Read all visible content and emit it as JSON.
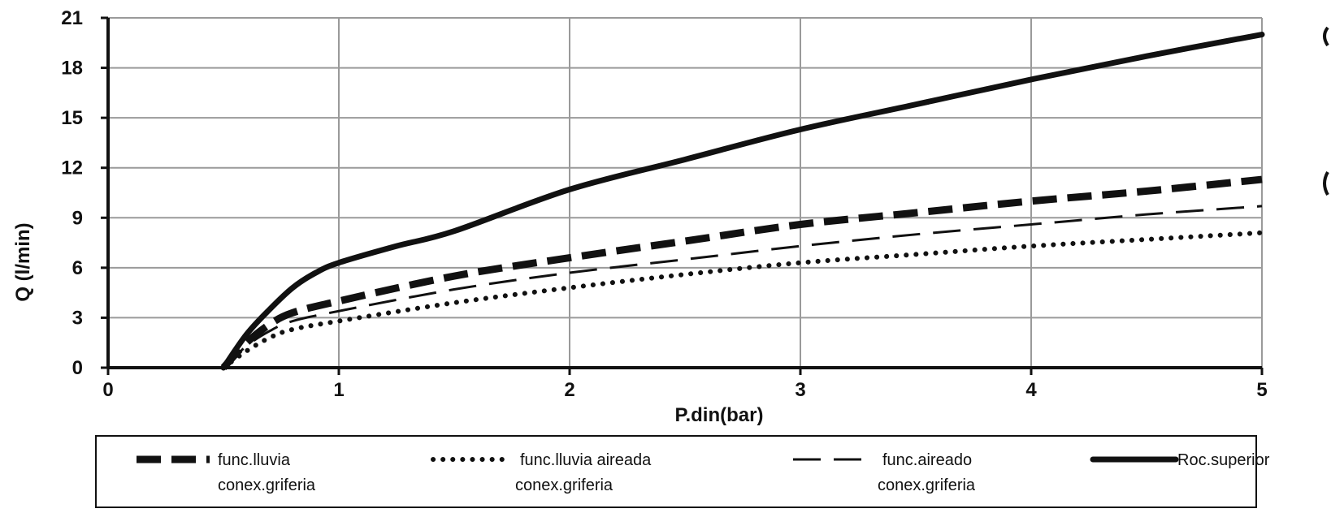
{
  "chart_data": {
    "type": "line",
    "title": "",
    "xlabel": "P.din(bar)",
    "ylabel": "Q (l/min)",
    "xlim": [
      0,
      5
    ],
    "ylim": [
      0,
      21
    ],
    "x_ticks": [
      "0",
      "1",
      "2",
      "3",
      "4",
      "5"
    ],
    "y_ticks": [
      "0",
      "3",
      "6",
      "9",
      "12",
      "15",
      "18",
      "21"
    ],
    "grid": true,
    "legend_position": "bottom",
    "series": [
      {
        "name_line1": "func.lluvia",
        "name_line2": "conex.griferia",
        "style": "heavy-dash",
        "x": [
          0.5,
          0.6,
          0.7,
          0.8,
          1.0,
          1.5,
          2.0,
          2.5,
          3.0,
          3.5,
          4.0,
          4.5,
          5.0
        ],
        "y": [
          0.0,
          1.5,
          2.6,
          3.3,
          4.0,
          5.5,
          6.6,
          7.6,
          8.6,
          9.3,
          10.0,
          10.6,
          11.3
        ]
      },
      {
        "name_line1": "func.lluvia aireada",
        "name_line2": "conex.griferia",
        "style": "dotted",
        "x": [
          0.5,
          0.6,
          0.7,
          0.8,
          1.0,
          1.5,
          2.0,
          2.5,
          3.0,
          3.5,
          4.0,
          4.5,
          5.0
        ],
        "y": [
          0.0,
          1.0,
          1.8,
          2.3,
          2.8,
          3.9,
          4.8,
          5.6,
          6.3,
          6.8,
          7.3,
          7.7,
          8.1
        ]
      },
      {
        "name_line1": "func.aireado",
        "name_line2": "conex.griferia",
        "style": "long-dash",
        "x": [
          0.5,
          0.6,
          0.7,
          0.8,
          1.0,
          1.5,
          2.0,
          2.5,
          3.0,
          3.5,
          4.0,
          4.5,
          5.0
        ],
        "y": [
          0.0,
          1.3,
          2.2,
          2.8,
          3.4,
          4.7,
          5.7,
          6.5,
          7.3,
          8.0,
          8.6,
          9.2,
          9.7
        ]
      },
      {
        "name_line1": "Roc.superior",
        "name_line2": "",
        "style": "solid",
        "x": [
          0.5,
          0.6,
          0.7,
          0.8,
          0.9,
          1.0,
          1.25,
          1.5,
          2.0,
          2.5,
          3.0,
          3.5,
          4.0,
          4.5,
          5.0
        ],
        "y": [
          0.0,
          2.0,
          3.5,
          4.8,
          5.7,
          6.3,
          7.3,
          8.2,
          10.7,
          12.5,
          14.3,
          15.8,
          17.3,
          18.7,
          20.0
        ]
      }
    ]
  }
}
